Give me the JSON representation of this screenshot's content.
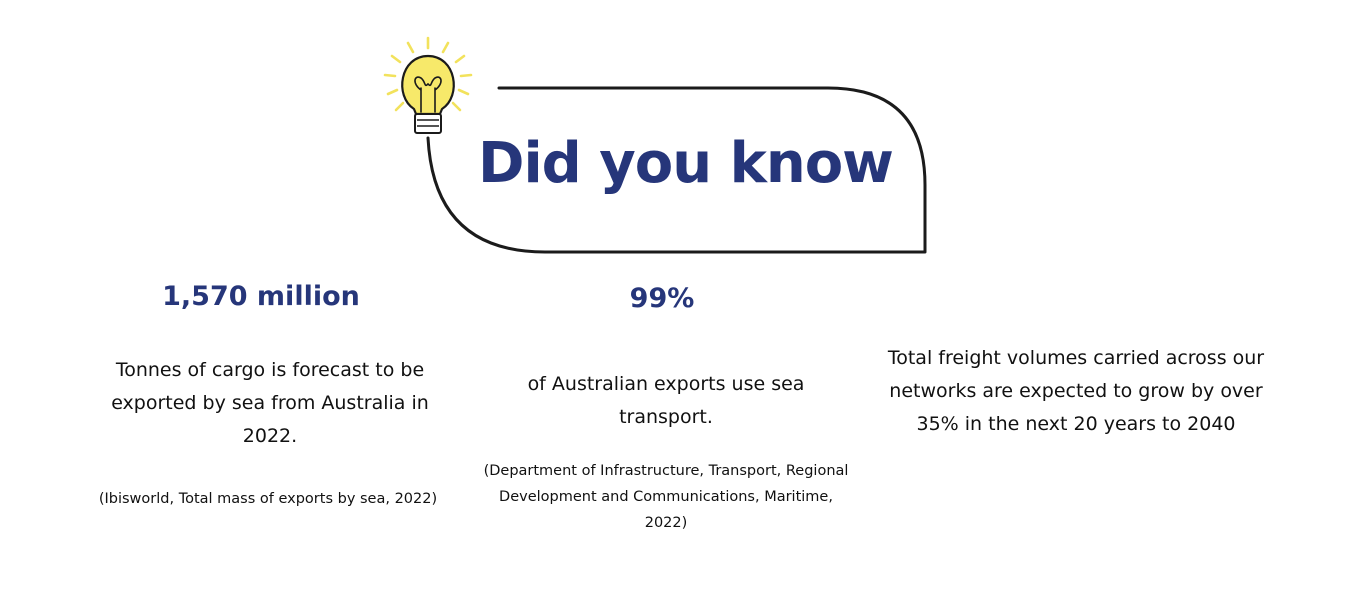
{
  "heading": "Did you know",
  "colors": {
    "accent": "#26367a",
    "bulb": "#f7e96a",
    "rays": "#f2e25c",
    "outline": "#1b1b1b"
  },
  "icons": {
    "bulb": "lightbulb-icon"
  },
  "facts": [
    {
      "stat": "1,570 million",
      "description": "Tonnes of cargo is forecast to be exported by sea from Australia in 2022.",
      "source": "(Ibisworld, Total mass of exports by sea, 2022)"
    },
    {
      "stat": "99%",
      "description": "of Australian exports use sea transport.",
      "source": "(Department of Infrastructure, Transport, Regional Development and Communications, Maritime, 2022)"
    },
    {
      "description": "Total freight volumes carried across our networks are expected to grow by over 35% in the next 20 years to 2040"
    }
  ]
}
